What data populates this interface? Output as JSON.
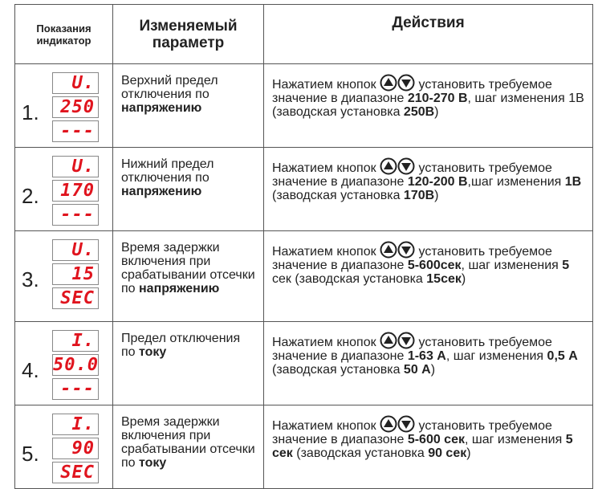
{
  "header": [
    "Показания индикатор",
    "Изменяемый параметр",
    "Действия"
  ],
  "rows": [
    {
      "number": "1.",
      "display": [
        "U.",
        "250",
        "---"
      ],
      "parameter": [
        {
          "text": "Верхний предел отключения по "
        },
        {
          "text": "напряжению",
          "bold": true
        }
      ],
      "action": [
        {
          "text": "Нажатием кнопок"
        },
        {
          "text": " установить требуемое значение в диапазоне "
        },
        {
          "text": "210-270 В",
          "bold": true
        },
        {
          "text": ", шаг изменения 1В (заводская установка "
        },
        {
          "text": "250В",
          "bold": true
        },
        {
          "text": ")"
        }
      ]
    },
    {
      "number": "2.",
      "display": [
        "U.",
        "170",
        "---"
      ],
      "parameter": [
        {
          "text": "Нижний предел отключения по "
        },
        {
          "text": "напряжению",
          "bold": true
        }
      ],
      "action": [
        {
          "text": "Нажатием кнопок"
        },
        {
          "text": " установить требуемое значение в диапазоне "
        },
        {
          "text": "120-200 В",
          "bold": true
        },
        {
          "text": ",шаг изменения "
        },
        {
          "text": "1В",
          "bold": true
        },
        {
          "text": " (заводская установка "
        },
        {
          "text": "170В",
          "bold": true
        },
        {
          "text": ")"
        }
      ]
    },
    {
      "number": "3.",
      "display": [
        "U.",
        "15",
        "SEC"
      ],
      "parameter": [
        {
          "text": "Время задержки включения при срабатывании отсечки по "
        },
        {
          "text": "напряжению",
          "bold": true
        }
      ],
      "action": [
        {
          "text": "Нажатием кнопок"
        },
        {
          "text": " установить требуемое значение в диапазоне "
        },
        {
          "text": "5-600сек",
          "bold": true
        },
        {
          "text": ", шаг изменения "
        },
        {
          "text": "5",
          "bold": true
        },
        {
          "text": " сек (заводская установка "
        },
        {
          "text": "15сек",
          "bold": true
        },
        {
          "text": ")"
        }
      ]
    },
    {
      "number": "4.",
      "display": [
        "I.",
        "50.0",
        "---"
      ],
      "parameter": [
        {
          "text": "Предел отключения по "
        },
        {
          "text": "току",
          "bold": true
        }
      ],
      "action": [
        {
          "text": "Нажатием кнопок"
        },
        {
          "text": " установить требуемое значение в диапазоне "
        },
        {
          "text": "1-63 А",
          "bold": true
        },
        {
          "text": ", шаг изменения "
        },
        {
          "text": "0,5 А",
          "bold": true
        },
        {
          "text": " (заводская установка "
        },
        {
          "text": "50 А",
          "bold": true
        },
        {
          "text": ")"
        }
      ]
    },
    {
      "number": "5.",
      "display": [
        "I.",
        "90",
        "SEC"
      ],
      "parameter": [
        {
          "text": "Время задержки включения при срабатывании отсечки по "
        },
        {
          "text": "току",
          "bold": true
        }
      ],
      "action": [
        {
          "text": "Нажатием кнопок"
        },
        {
          "text": " установить требуемое значение в диапазоне "
        },
        {
          "text": "5-600 сек",
          "bold": true
        },
        {
          "text": ", шаг изменения "
        },
        {
          "text": "5 сек",
          "bold": true
        },
        {
          "text": " (заводская установка "
        },
        {
          "text": "90 сек",
          "bold": true
        },
        {
          "text": ")"
        }
      ]
    }
  ]
}
